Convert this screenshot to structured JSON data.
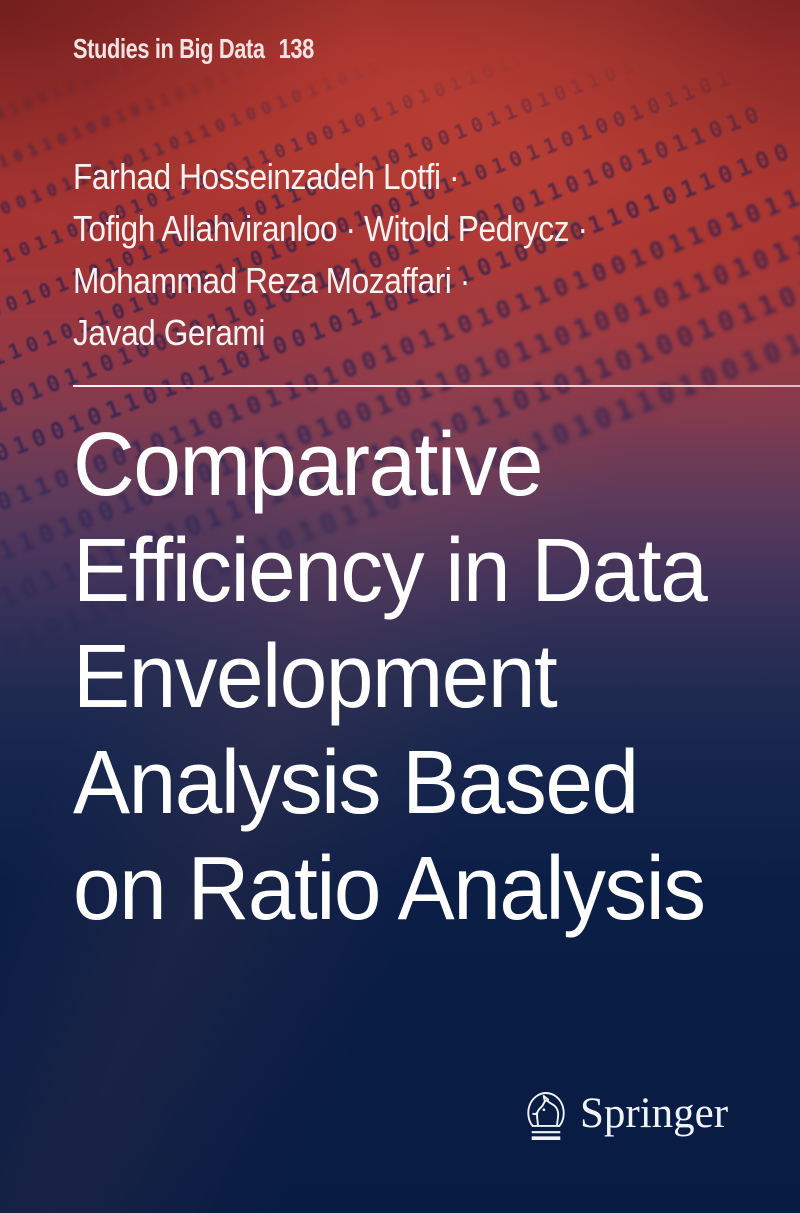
{
  "cover": {
    "series": {
      "name": "Studies in Big Data",
      "number": "138"
    },
    "authors": [
      "Farhad Hosseinzadeh Lotfi ·",
      "Tofigh Allahviranloo · Witold Pedrycz ·",
      "Mohammad Reza Mozaffari ·",
      "Javad Gerami"
    ],
    "title_lines": [
      "Comparative",
      "Efficiency in Data",
      "Envelopment",
      "Analysis Based",
      "on Ratio Analysis"
    ],
    "publisher": {
      "name": "Springer",
      "logo": "springer-horse-icon"
    },
    "colors": {
      "top_red": "#ab3631",
      "mid_maroon": "#7e3a4f",
      "mid_purple": "#49355b",
      "deep_navy": "#071b43",
      "series_text": "#f2e2e1",
      "author_text": "#f7f2f2",
      "title_text": "#ffffff",
      "rule": "#f2e7e5",
      "pattern_digits": "#101a54"
    },
    "background_pattern": {
      "type": "binary-digits",
      "rows": [
        "1011010010110101101001011010110100101101011010",
        "0101101101001011010110100101101011010010110101",
        "1101001011010110110100101101011011010010110101",
        "0110101101001011010110100101101011010010110110",
        "1010010110101101001011010110100101101011010010",
        "0101101011010010110101101001011010110100101101",
        "1011010110100101101011010010110101101001011010",
        "0110100101101011010010110101101001011010110100",
        "1010110100101101011010010110101101001011010110",
        "0101101001011010110100101101011010010110101101",
        "1101011010010110101101001011010110100101101011",
        "0110101101001011010110100101101011010010110101"
      ]
    }
  }
}
